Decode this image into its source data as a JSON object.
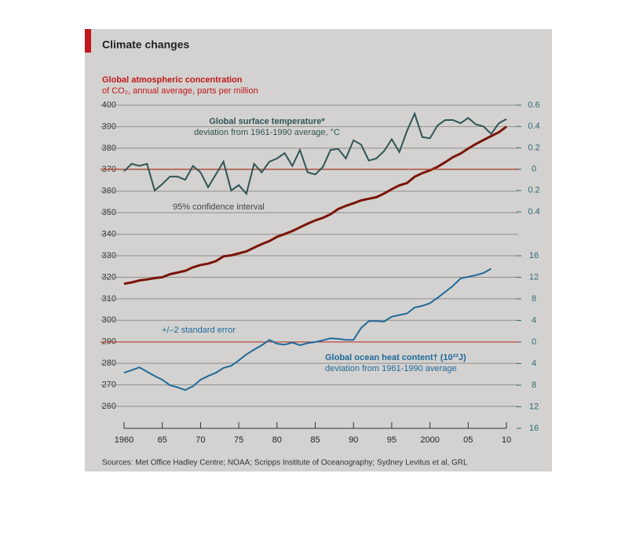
{
  "title": "Climate changes",
  "source": "Sources: Met Office Hadley Centre; NOAA; Scripps Institute of Oceanography; Sydney Levitus et al, GRL",
  "chart_data": [
    {
      "type": "line",
      "label": [
        "Global atmospheric concentration",
        "of CO₂, annual average, parts per million"
      ],
      "color": "#7a1408",
      "axis_side": "left",
      "grid": true,
      "x": [
        1960,
        1961,
        1962,
        1963,
        1964,
        1965,
        1966,
        1967,
        1968,
        1969,
        1970,
        1971,
        1972,
        1973,
        1974,
        1975,
        1976,
        1977,
        1978,
        1979,
        1980,
        1981,
        1982,
        1983,
        1984,
        1985,
        1986,
        1987,
        1988,
        1989,
        1990,
        1991,
        1992,
        1993,
        1994,
        1995,
        1996,
        1997,
        1998,
        1999,
        2000,
        2001,
        2002,
        2003,
        2004,
        2005,
        2006,
        2007,
        2008,
        2009,
        2010
      ],
      "values": [
        317,
        317.6,
        318.5,
        319,
        319.6,
        320,
        321.4,
        322.2,
        323,
        324.6,
        325.7,
        326.3,
        327.5,
        329.7,
        330.2,
        331.1,
        332,
        333.8,
        335.4,
        336.8,
        338.8,
        340.1,
        341.5,
        343.2,
        344.9,
        346.4,
        347.6,
        349.3,
        351.7,
        353.2,
        354.4,
        355.7,
        356.5,
        357.2,
        358.9,
        360.9,
        362.7,
        363.8,
        366.7,
        368.4,
        369.7,
        371.3,
        373.5,
        375.8,
        377.5,
        379.8,
        381.9,
        383.8,
        385.6,
        387.4,
        390
      ],
      "xlim": [
        1960,
        2010
      ],
      "xticks": [
        1960,
        {
          "value": 1965,
          "label": "65"
        },
        {
          "value": 1970,
          "label": "70"
        },
        {
          "value": 1975,
          "label": "75"
        },
        {
          "value": 1980,
          "label": "80"
        },
        {
          "value": 1985,
          "label": "85"
        },
        {
          "value": 1990,
          "label": "90"
        },
        {
          "value": 1995,
          "label": "95"
        },
        2000,
        {
          "value": 2005,
          "label": "05"
        },
        {
          "value": 2010,
          "label": "10"
        }
      ],
      "ylim": [
        260,
        400
      ],
      "yticks": [
        260,
        270,
        280,
        290,
        300,
        310,
        320,
        330,
        340,
        350,
        360,
        370,
        380,
        390,
        400
      ]
    },
    {
      "type": "line",
      "label": [
        "Global surface temperature*",
        "deviation from 1961-1990 average, °C"
      ],
      "annotation": "95% confidence interval",
      "color": "#2f5555",
      "axis_side": "right",
      "zero_line_color": "#c0392b",
      "x": [
        1960,
        1961,
        1962,
        1963,
        1964,
        1965,
        1966,
        1967,
        1968,
        1969,
        1970,
        1971,
        1972,
        1973,
        1974,
        1975,
        1976,
        1977,
        1978,
        1979,
        1980,
        1981,
        1982,
        1983,
        1984,
        1985,
        1986,
        1987,
        1988,
        1989,
        1990,
        1991,
        1992,
        1993,
        1994,
        1995,
        1996,
        1997,
        1998,
        1999,
        2000,
        2001,
        2002,
        2003,
        2004,
        2005,
        2006,
        2007,
        2008,
        2009,
        2010
      ],
      "values": [
        -0.02,
        0.05,
        0.03,
        0.05,
        -0.2,
        -0.14,
        -0.07,
        -0.07,
        -0.1,
        0.03,
        -0.03,
        -0.17,
        -0.05,
        0.07,
        -0.2,
        -0.15,
        -0.23,
        0.05,
        -0.03,
        0.07,
        0.1,
        0.15,
        0.03,
        0.18,
        -0.03,
        -0.05,
        0.02,
        0.18,
        0.19,
        0.1,
        0.27,
        0.23,
        0.08,
        0.1,
        0.17,
        0.28,
        0.16,
        0.36,
        0.52,
        0.3,
        0.29,
        0.41,
        0.46,
        0.46,
        0.43,
        0.48,
        0.42,
        0.4,
        0.33,
        0.43,
        0.47
      ],
      "xlim": [
        1960,
        2010
      ],
      "ylim": [
        -0.4,
        0.6
      ],
      "yticks": [
        {
          "value": -0.4,
          "label": "0.4"
        },
        {
          "value": -0.2,
          "label": "0.2"
        },
        0,
        0.2,
        0.4,
        0.6
      ]
    },
    {
      "type": "line",
      "label": [
        "Global ocean heat content† (10²²J)",
        "deviation from 1961-1990 average"
      ],
      "annotation": "+/–2 standard error",
      "color": "#1f6a9a",
      "axis_side": "right",
      "zero_line_color": "#c0392b",
      "x": [
        1960,
        1961,
        1962,
        1963,
        1964,
        1965,
        1966,
        1967,
        1968,
        1969,
        1970,
        1971,
        1972,
        1973,
        1974,
        1975,
        1976,
        1977,
        1978,
        1979,
        1980,
        1981,
        1982,
        1983,
        1984,
        1985,
        1986,
        1987,
        1988,
        1989,
        1990,
        1991,
        1992,
        1993,
        1994,
        1995,
        1996,
        1997,
        1998,
        1999,
        2000,
        2001,
        2002,
        2003,
        2004,
        2005,
        2006,
        2007,
        2008
      ],
      "values": [
        -5.7,
        -5.2,
        -4.7,
        -5.5,
        -6.3,
        -7,
        -8,
        -8.4,
        -8.9,
        -8.2,
        -7,
        -6.3,
        -5.7,
        -4.8,
        -4.4,
        -3.4,
        -2.3,
        -1.4,
        -0.6,
        0.4,
        -0.3,
        -0.5,
        -0.1,
        -0.6,
        -0.2,
        0,
        0.3,
        0.7,
        0.6,
        0.4,
        0.4,
        2.6,
        3.9,
        3.9,
        3.8,
        4.7,
        5,
        5.3,
        6.4,
        6.7,
        7.2,
        8.2,
        9.3,
        10.4,
        11.8,
        12.1,
        12.4,
        12.8,
        13.6
      ],
      "xlim": [
        1960,
        2010
      ],
      "ylim": [
        -16,
        16
      ],
      "yticks": [
        {
          "value": -16,
          "label": "16"
        },
        {
          "value": -12,
          "label": "12"
        },
        {
          "value": -8,
          "label": "8"
        },
        {
          "value": -4,
          "label": "4"
        },
        0,
        4,
        8,
        12,
        16
      ]
    }
  ]
}
